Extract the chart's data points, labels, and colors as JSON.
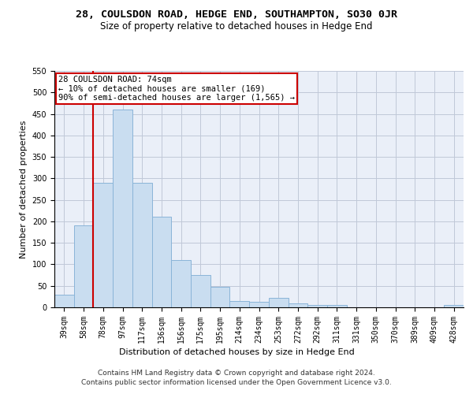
{
  "title_line1": "28, COULSDON ROAD, HEDGE END, SOUTHAMPTON, SO30 0JR",
  "title_line2": "Size of property relative to detached houses in Hedge End",
  "xlabel": "Distribution of detached houses by size in Hedge End",
  "ylabel": "Number of detached properties",
  "categories": [
    "39sqm",
    "58sqm",
    "78sqm",
    "97sqm",
    "117sqm",
    "136sqm",
    "156sqm",
    "175sqm",
    "195sqm",
    "214sqm",
    "234sqm",
    "253sqm",
    "272sqm",
    "292sqm",
    "311sqm",
    "331sqm",
    "350sqm",
    "370sqm",
    "389sqm",
    "409sqm",
    "428sqm"
  ],
  "values": [
    30,
    190,
    290,
    460,
    290,
    210,
    110,
    75,
    47,
    15,
    13,
    22,
    10,
    6,
    5,
    0,
    0,
    0,
    0,
    0,
    6
  ],
  "bar_color": "#c9ddf0",
  "bar_edge_color": "#8ab4d8",
  "vline_color": "#cc0000",
  "vline_x_index": 2.0,
  "annotation_box_text": "28 COULSDON ROAD: 74sqm\n← 10% of detached houses are smaller (169)\n90% of semi-detached houses are larger (1,565) →",
  "annotation_box_color": "#cc0000",
  "annotation_box_facecolor": "white",
  "ylim": [
    0,
    550
  ],
  "yticks": [
    0,
    50,
    100,
    150,
    200,
    250,
    300,
    350,
    400,
    450,
    500,
    550
  ],
  "grid_color": "#c0c8d8",
  "bg_color": "#eaeff8",
  "footer_line1": "Contains HM Land Registry data © Crown copyright and database right 2024.",
  "footer_line2": "Contains public sector information licensed under the Open Government Licence v3.0.",
  "title_fontsize": 9.5,
  "subtitle_fontsize": 8.5,
  "axis_label_fontsize": 8,
  "tick_fontsize": 7,
  "annotation_fontsize": 7.5,
  "footer_fontsize": 6.5
}
